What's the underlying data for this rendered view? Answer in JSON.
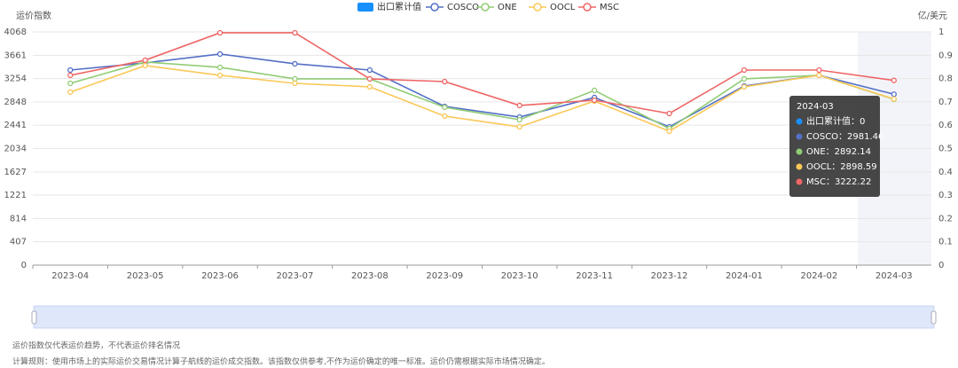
{
  "chart_data": {
    "type": "line",
    "y_axis_title": "运价指数",
    "y2_axis_title": "亿/美元",
    "categories": [
      "2023-04",
      "2023-05",
      "2023-06",
      "2023-07",
      "2023-08",
      "2023-09",
      "2023-10",
      "2023-11",
      "2023-12",
      "2024-01",
      "2024-02",
      "2024-03"
    ],
    "ylim": [
      0,
      4068
    ],
    "yticks": [
      0,
      407,
      814,
      1221,
      1627,
      2034,
      2441,
      2848,
      3254,
      3661,
      4068
    ],
    "y2lim": [
      0,
      1
    ],
    "y2ticks": [
      0,
      0.1,
      0.2,
      0.3,
      0.4,
      0.5,
      0.6,
      0.7,
      0.8,
      0.9,
      1
    ],
    "grid": true,
    "series": [
      {
        "name": "出口累计值",
        "type": "bar",
        "axis": "y2",
        "color": "#1890ff",
        "values": [
          0,
          0,
          0,
          0,
          0,
          0,
          0,
          0,
          0,
          0,
          0,
          0
        ]
      },
      {
        "name": "COSCO",
        "color": "#5470c6",
        "values": [
          3403,
          3527,
          3682,
          3512,
          3403,
          2769,
          2583,
          2924,
          2413,
          3125,
          3311,
          2981.46
        ]
      },
      {
        "name": "ONE",
        "color": "#91cc75",
        "values": [
          3171,
          3543,
          3450,
          3249,
          3249,
          2754,
          2537,
          3048,
          2382,
          3249,
          3311,
          2892.14
        ]
      },
      {
        "name": "OOCL",
        "color": "#fac858",
        "values": [
          3017,
          3481,
          3311,
          3171,
          3110,
          2599,
          2413,
          2862,
          2336,
          3110,
          3311,
          2898.59
        ]
      },
      {
        "name": "MSC",
        "color": "#ee6666",
        "values": [
          3311,
          3574,
          4053,
          4053,
          3249,
          3202,
          2785,
          2877,
          2645,
          3403,
          3403,
          3222.22
        ]
      }
    ],
    "tooltip": {
      "items": [
        "出口累计值：0",
        "COSCO：2981.46",
        "ONE：2892.14",
        "OOCL：2898.59",
        "MSC：3222.22"
      ]
    },
    "notes": [
      "运价指数仅代表运价趋势，不代表运价排名情况",
      "计算规则：使用市场上的实际运价交易情况计算子航线的运价成交指数。该指数仅供参考,不作为运价确定的唯一标准。运价仍需根据实际市场情况确定。"
    ]
  }
}
